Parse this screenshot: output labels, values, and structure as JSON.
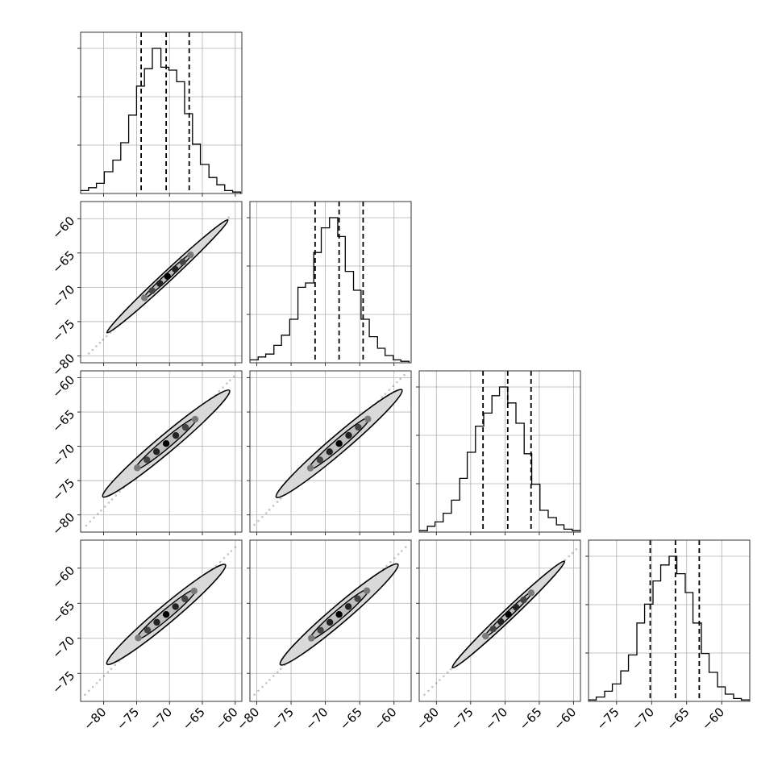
{
  "chart_data": {
    "type": "corner",
    "n_params": 4,
    "grid": true,
    "colors": {
      "line": "#000000",
      "grid": "#b0b0b0",
      "fill": "#d9d9d9",
      "points": "#555555"
    },
    "params": [
      {
        "range": [
          -83.5,
          -59
        ],
        "q": [
          -74.3,
          -70.5,
          -67.0
        ],
        "edges": [
          -83.5,
          -82.3,
          -81.1,
          -79.9,
          -78.6,
          -77.4,
          -76.2,
          -75.0,
          -73.8,
          -72.6,
          -71.3,
          -70.1,
          -68.9,
          -67.7,
          -66.5,
          -65.3,
          -64.0,
          -62.8,
          -61.6,
          -60.4,
          -59.2
        ],
        "counts": [
          0.02,
          0.04,
          0.07,
          0.15,
          0.23,
          0.35,
          0.54,
          0.74,
          0.86,
          1.0,
          0.87,
          0.85,
          0.77,
          0.55,
          0.34,
          0.2,
          0.11,
          0.06,
          0.02,
          0.01
        ],
        "ticks": [
          -80,
          -75,
          -70,
          -65,
          -60
        ]
      },
      {
        "range": [
          -81,
          -57.5
        ],
        "q": [
          -71.5,
          -68.0,
          -64.5
        ],
        "edges": [
          -81.0,
          -79.8,
          -78.7,
          -77.5,
          -76.4,
          -75.2,
          -74.0,
          -72.9,
          -71.7,
          -70.6,
          -69.4,
          -68.2,
          -67.1,
          -65.9,
          -64.8,
          -63.6,
          -62.4,
          -61.3,
          -60.1,
          -59.0,
          -57.8
        ],
        "counts": [
          0.02,
          0.04,
          0.06,
          0.12,
          0.19,
          0.3,
          0.52,
          0.55,
          0.76,
          0.93,
          1.0,
          0.87,
          0.63,
          0.5,
          0.3,
          0.18,
          0.1,
          0.05,
          0.02,
          0.01
        ],
        "ticks": [
          -80,
          -75,
          -70,
          -65,
          -60
        ]
      },
      {
        "range": [
          -82.5,
          -59
        ],
        "q": [
          -73.2,
          -69.6,
          -66.2
        ],
        "edges": [
          -82.5,
          -81.3,
          -80.2,
          -79.0,
          -77.8,
          -76.6,
          -75.5,
          -74.3,
          -73.1,
          -71.9,
          -70.8,
          -69.6,
          -68.4,
          -67.2,
          -66.1,
          -64.9,
          -63.7,
          -62.5,
          -61.4,
          -60.2,
          -59.0
        ],
        "counts": [
          0.01,
          0.04,
          0.07,
          0.13,
          0.22,
          0.37,
          0.55,
          0.73,
          0.82,
          0.94,
          1.0,
          0.89,
          0.75,
          0.54,
          0.33,
          0.15,
          0.1,
          0.05,
          0.02,
          0.01
        ],
        "ticks": [
          -80,
          -75,
          -70,
          -65,
          -60
        ]
      },
      {
        "range": [
          -79,
          -56
        ],
        "q": [
          -70.2,
          -66.6,
          -63.2
        ],
        "edges": [
          -79.0,
          -77.9,
          -76.7,
          -75.6,
          -74.4,
          -73.3,
          -72.1,
          -71.0,
          -69.8,
          -68.7,
          -67.5,
          -66.4,
          -65.2,
          -64.1,
          -62.9,
          -61.8,
          -60.6,
          -59.5,
          -58.3,
          -57.2,
          -56.0
        ],
        "counts": [
          0.01,
          0.03,
          0.07,
          0.12,
          0.21,
          0.32,
          0.54,
          0.67,
          0.83,
          0.94,
          1.0,
          0.88,
          0.75,
          0.54,
          0.33,
          0.2,
          0.1,
          0.05,
          0.02,
          0.01
        ],
        "ticks": [
          -75,
          -70,
          -65,
          -60
        ]
      }
    ],
    "panels": {
      "1-0": {
        "ellipse": {
          "cx": -70.3,
          "cy": -68.4,
          "a": 12.3,
          "b": 0.75,
          "angle": 43.0
        },
        "inner": {
          "cx": -70.3,
          "cy": -68.4,
          "a": 5.0,
          "b": 0.4,
          "angle": 43.0
        },
        "tail": {
          "x0": -82.2,
          "y0": -79.6,
          "x1": -61.0,
          "y1": -59.8
        }
      },
      "2-0": {
        "ellipse": {
          "cx": -70.5,
          "cy": -69.6,
          "a": 12.3,
          "b": 1.3,
          "angle": 40.0
        },
        "inner": {
          "cx": -70.5,
          "cy": -69.6,
          "a": 6.0,
          "b": 0.7,
          "angle": 40.0
        },
        "tail": {
          "x0": -82.6,
          "y0": -81.5,
          "x1": -60.2,
          "y1": -59.8
        }
      },
      "2-1": {
        "ellipse": {
          "cx": -68.0,
          "cy": -69.6,
          "a": 12.3,
          "b": 1.3,
          "angle": 40.5
        },
        "inner": {
          "cx": -68.0,
          "cy": -69.6,
          "a": 6.0,
          "b": 0.7,
          "angle": 40.5
        },
        "tail": {
          "x0": -80.3,
          "y0": -81.4,
          "x1": -58.5,
          "y1": -59.6
        }
      },
      "3-0": {
        "ellipse": {
          "cx": -70.5,
          "cy": -66.6,
          "a": 11.5,
          "b": 1.3,
          "angle": 40.0
        },
        "inner": {
          "cx": -70.5,
          "cy": -66.6,
          "a": 5.8,
          "b": 0.7,
          "angle": 40.0
        },
        "tail": {
          "x0": -82.8,
          "y0": -78.0,
          "x1": -60.0,
          "y1": -57.0
        }
      },
      "3-1": {
        "ellipse": {
          "cx": -68.0,
          "cy": -66.6,
          "a": 11.5,
          "b": 1.3,
          "angle": 40.5
        },
        "inner": {
          "cx": -68.0,
          "cy": -66.6,
          "a": 5.8,
          "b": 0.7,
          "angle": 40.5
        },
        "tail": {
          "x0": -80.3,
          "y0": -78.0,
          "x1": -58.3,
          "y1": -57.0
        }
      },
      "3-2": {
        "ellipse": {
          "cx": -69.5,
          "cy": -66.6,
          "a": 11.5,
          "b": 0.8,
          "angle": 43.5
        },
        "inner": {
          "cx": -69.5,
          "cy": -66.6,
          "a": 5.0,
          "b": 0.4,
          "angle": 43.5
        },
        "tail": {
          "x0": -81.7,
          "y0": -78.0,
          "x1": -59.6,
          "y1": -57.3
        }
      }
    },
    "labels": {
      "title": "",
      "axis_titles": []
    }
  }
}
